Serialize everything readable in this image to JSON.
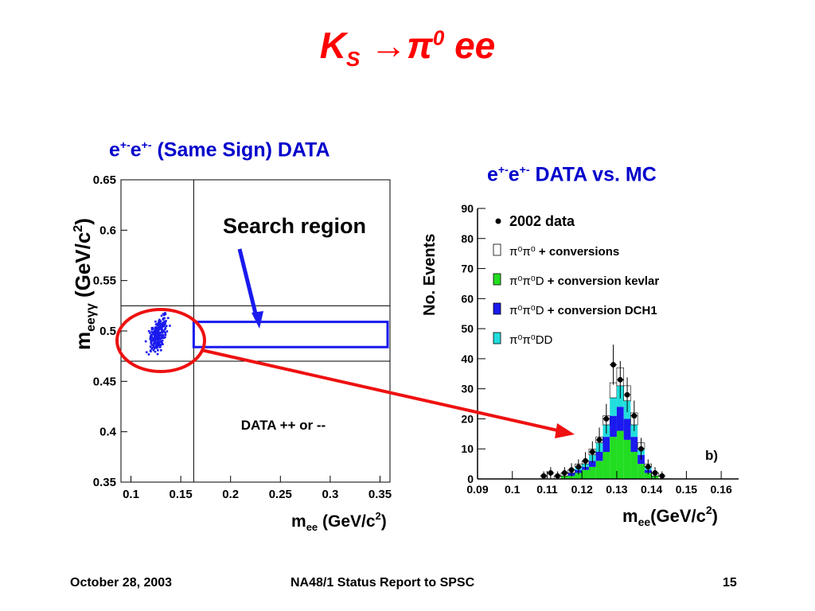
{
  "slide": {
    "title": {
      "main": "K",
      "sub": "S",
      "arrow": "→π",
      "sup": "0",
      "tail": " ee"
    },
    "left_caption": {
      "p1": "e",
      "s1": "+-",
      "p2": "e",
      "s2": "+-",
      "p3": " (Same Sign) DATA"
    },
    "right_caption": {
      "p1": "e",
      "s1": "+-",
      "p2": "e",
      "s2": "+-",
      "p3": " DATA vs. MC"
    },
    "footer": {
      "date": "October 28, 2003",
      "center": "NA48/1 Status Report to SPSC",
      "page": "15"
    }
  },
  "colors": {
    "title": "#ff0000",
    "caption": "#0000cc",
    "points": "#1a1aee",
    "arrow": "#ee1111"
  },
  "chart_data": [
    {
      "type": "scatter",
      "xlabel": "m_ee (GeV/c²)",
      "ylabel": "m_eeγγ (GeV/c²)",
      "xlim": [
        0.09,
        0.36
      ],
      "ylim": [
        0.35,
        0.65
      ],
      "xticks": [
        "0.1",
        "0.15",
        "0.2",
        "0.25",
        "0.3",
        "0.35"
      ],
      "yticks": [
        "0.35",
        "0.4",
        "0.45",
        "0.5",
        "0.55",
        "0.6",
        "0.65"
      ],
      "vertical_cut": 0.163,
      "horizontal_cuts": [
        0.47,
        0.525
      ],
      "search_region": {
        "x": [
          0.163,
          0.36
        ],
        "y": [
          0.484,
          0.509
        ]
      },
      "annotations": {
        "search_label": "Search region",
        "data_label": "DATA ++ or --"
      },
      "cluster": {
        "x_center": 0.128,
        "y_center": 0.4975,
        "count": 230
      }
    },
    {
      "type": "histogram",
      "xlabel": "m_ee(GeV/c²)",
      "ylabel": "No. Events",
      "xlim": [
        0.09,
        0.165
      ],
      "ylim": [
        0,
        90
      ],
      "xticks": [
        "0.09",
        "0.1",
        "0.11",
        "0.12",
        "0.13",
        "0.14",
        "0.15",
        "0.16"
      ],
      "yticks": [
        "0",
        "10",
        "20",
        "30",
        "40",
        "50",
        "60",
        "70",
        "80",
        "90"
      ],
      "panel_label": "b)",
      "legend": [
        {
          "label": "2002 data",
          "style": "dot"
        },
        {
          "label": "+ conversions",
          "prefix": "π⁰π⁰",
          "style": "empty"
        },
        {
          "label": "+ conversion kevlar",
          "prefix": "π⁰π⁰D",
          "style": "#22dd22"
        },
        {
          "label": "+ conversion DCH1",
          "prefix": "π⁰π⁰D",
          "style": "#1a1aee"
        },
        {
          "label": "",
          "prefix": "π⁰π⁰DD",
          "style": "#22dddd"
        }
      ],
      "bin_centers": [
        0.109,
        0.111,
        0.113,
        0.115,
        0.117,
        0.119,
        0.121,
        0.123,
        0.125,
        0.127,
        0.129,
        0.131,
        0.133,
        0.135,
        0.137,
        0.139,
        0.141,
        0.143
      ],
      "data": [
        1,
        2,
        1,
        2,
        3,
        4,
        6,
        9,
        13,
        20,
        38,
        33,
        28,
        21,
        10,
        4,
        2,
        1
      ],
      "stack_green": [
        0,
        0,
        0,
        1,
        1,
        2,
        3,
        4,
        6,
        9,
        14,
        16,
        13,
        9,
        5,
        2,
        1,
        0
      ],
      "stack_blue": [
        0,
        0,
        0,
        0,
        1,
        1,
        1,
        2,
        3,
        5,
        7,
        8,
        7,
        5,
        3,
        1,
        0,
        0
      ],
      "stack_cyan": [
        0,
        0,
        0,
        0,
        0,
        1,
        1,
        2,
        3,
        4,
        6,
        7,
        6,
        4,
        2,
        1,
        0,
        0
      ],
      "stack_outline": [
        0,
        0,
        1,
        1,
        1,
        1,
        1,
        2,
        2,
        3,
        5,
        6,
        5,
        4,
        2,
        1,
        1,
        0
      ]
    }
  ]
}
